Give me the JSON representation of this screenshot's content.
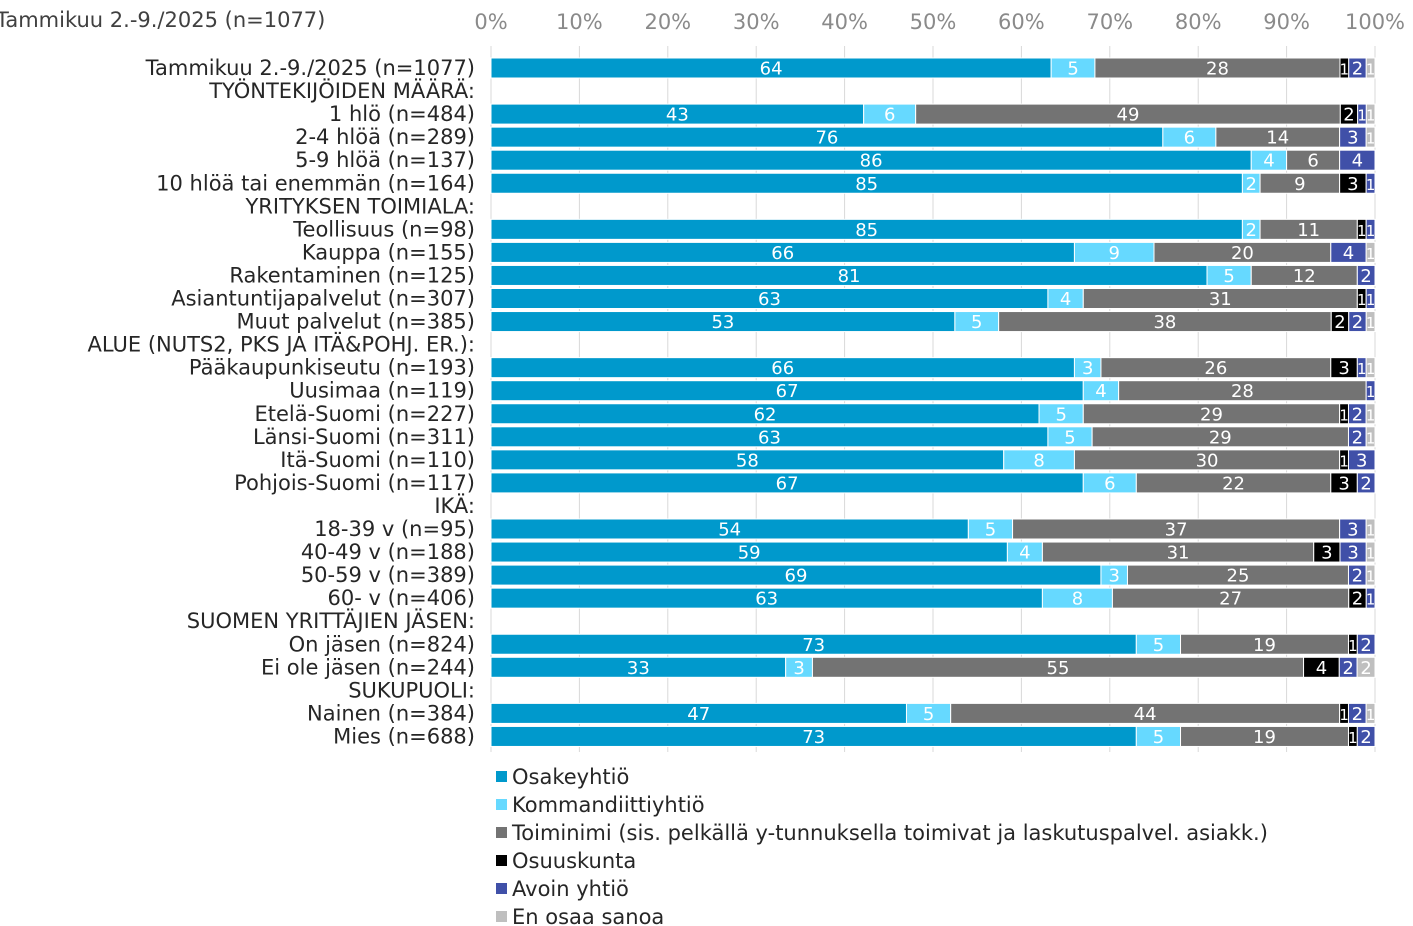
{
  "chart_data": {
    "type": "bar",
    "orientation": "horizontal",
    "stacked": "percent",
    "title": "Tammikuu  2.-9./2025 (n=1077)",
    "xlim": [
      0,
      100
    ],
    "xticks": [
      "0%",
      "10%",
      "20%",
      "30%",
      "40%",
      "50%",
      "60%",
      "70%",
      "80%",
      "90%",
      "100%"
    ],
    "grid": true,
    "legend_position": "bottom",
    "series": [
      {
        "name": "Osakeyhtiö",
        "color": "#0099CC"
      },
      {
        "name": "Kommandiittiyhtiö",
        "color": "#66D9FF"
      },
      {
        "name": "Toiminimi (sis. pelkällä y-tunnuksella toimivat ja laskutuspalvel. asiakk.)",
        "color": "#737373"
      },
      {
        "name": "Osuuskunta",
        "color": "#000000"
      },
      {
        "name": "Avoin yhtiö",
        "color": "#4050A8"
      },
      {
        "name": "En osaa sanoa",
        "color": "#BFBFBF"
      }
    ],
    "rows": [
      {
        "label": "Tammikuu 2.-9./2025 (n=1077)",
        "values": [
          64,
          5,
          28,
          1,
          2,
          1
        ]
      },
      {
        "label": "TYÖNTEKIJÖIDEN MÄÄRÄ:",
        "header": true
      },
      {
        "label": "1 hlö (n=484)",
        "values": [
          43,
          6,
          49,
          2,
          1,
          1
        ]
      },
      {
        "label": "2-4 hlöä (n=289)",
        "values": [
          76,
          6,
          14,
          0,
          3,
          1
        ]
      },
      {
        "label": "5-9 hlöä (n=137)",
        "values": [
          86,
          4,
          6,
          0,
          4,
          0
        ]
      },
      {
        "label": "10 hlöä tai enemmän (n=164)",
        "values": [
          85,
          2,
          9,
          3,
          1,
          0
        ]
      },
      {
        "label": "YRITYKSEN TOIMIALA:",
        "header": true
      },
      {
        "label": "Teollisuus (n=98)",
        "values": [
          85,
          2,
          11,
          1,
          1,
          0
        ]
      },
      {
        "label": "Kauppa (n=155)",
        "values": [
          66,
          9,
          20,
          0,
          4,
          1
        ]
      },
      {
        "label": "Rakentaminen (n=125)",
        "values": [
          81,
          5,
          12,
          0,
          2,
          0
        ]
      },
      {
        "label": "Asiantuntijapalvelut (n=307)",
        "values": [
          63,
          4,
          31,
          1,
          1,
          0
        ]
      },
      {
        "label": "Muut palvelut (n=385)",
        "values": [
          53,
          5,
          38,
          2,
          2,
          1
        ]
      },
      {
        "label": "ALUE (NUTS2, PKS JA ITÄ&POHJ. ER.):",
        "header": true
      },
      {
        "label": "Pääkaupunkiseutu (n=193)",
        "values": [
          66,
          3,
          26,
          3,
          1,
          1
        ]
      },
      {
        "label": "Uusimaa (n=119)",
        "values": [
          67,
          4,
          28,
          0,
          1,
          0
        ]
      },
      {
        "label": "Etelä-Suomi (n=227)",
        "values": [
          62,
          5,
          29,
          1,
          2,
          1
        ]
      },
      {
        "label": "Länsi-Suomi (n=311)",
        "values": [
          63,
          5,
          29,
          0,
          2,
          1
        ]
      },
      {
        "label": "Itä-Suomi (n=110)",
        "values": [
          58,
          8,
          30,
          1,
          3,
          0
        ]
      },
      {
        "label": "Pohjois-Suomi (n=117)",
        "values": [
          67,
          6,
          22,
          3,
          2,
          0
        ]
      },
      {
        "label": "IKÄ:",
        "header": true
      },
      {
        "label": "18-39 v (n=95)",
        "values": [
          54,
          5,
          37,
          0,
          3,
          1
        ]
      },
      {
        "label": "40-49 v (n=188)",
        "values": [
          59,
          4,
          31,
          3,
          3,
          1
        ]
      },
      {
        "label": "50-59 v (n=389)",
        "values": [
          69,
          3,
          25,
          0,
          2,
          1
        ]
      },
      {
        "label": "60- v (n=406)",
        "values": [
          63,
          8,
          27,
          2,
          1,
          0
        ]
      },
      {
        "label": "SUOMEN YRITTÄJIEN JÄSEN:",
        "header": true
      },
      {
        "label": "On jäsen (n=824)",
        "values": [
          73,
          5,
          19,
          1,
          2,
          0
        ]
      },
      {
        "label": "Ei ole jäsen (n=244)",
        "values": [
          33,
          3,
          55,
          4,
          2,
          2
        ]
      },
      {
        "label": "SUKUPUOLI:",
        "header": true
      },
      {
        "label": "Nainen (n=384)",
        "values": [
          47,
          5,
          44,
          1,
          2,
          1
        ]
      },
      {
        "label": "Mies (n=688)",
        "values": [
          73,
          5,
          19,
          1,
          2,
          0
        ]
      }
    ]
  }
}
